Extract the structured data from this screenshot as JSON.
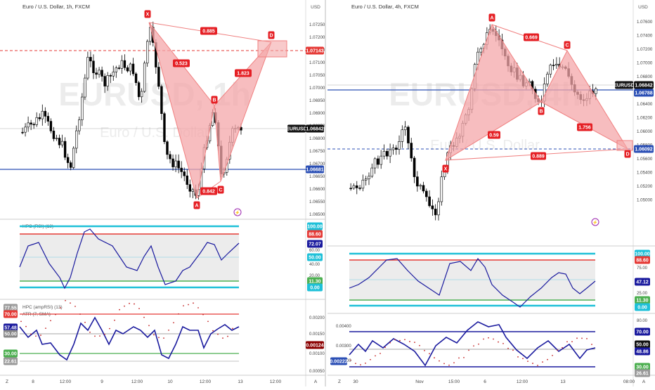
{
  "left": {
    "title": "Euro / U.S. Dollar, 1h, FXCM",
    "currency": "USD",
    "watermark_symbol": "EURUSD, 1h",
    "watermark_name": "Euro / U.S. Dollar",
    "price_axis": [
      "1.07250",
      "1.07200",
      "1.07150",
      "1.07100",
      "1.07050",
      "1.07000",
      "1.06950",
      "1.06900",
      "1.06850",
      "1.06800",
      "1.06750",
      "1.06700",
      "1.06650",
      "1.06600",
      "1.06550",
      "1.06500"
    ],
    "last_price_label": "EURUSD",
    "last_price": "1.06842",
    "red_level": "1.07143",
    "blue_level": "1.06681",
    "pattern_points": [
      "X",
      "A",
      "B",
      "C",
      "D"
    ],
    "ratios": {
      "xb": "0.523",
      "xd": "0.885",
      "bd": "1.823",
      "ac": "0.842"
    },
    "rsi_label": "HPC (RSI) (13)",
    "rsi_axis": [
      "100.00",
      "88.60",
      "72.07",
      "60.00",
      "50.00",
      "40.00",
      "20.00",
      "11.30",
      "0.00"
    ],
    "amp_label": "HPC (ampRSI) (13)",
    "atr_label": "ATR (7, SMA)",
    "amp_left_axis": [
      "77.55",
      "70.00",
      "57.48",
      "50.00",
      "30.00",
      "22.61"
    ],
    "atr_axis": [
      "0.00200",
      "0.00150",
      "0.00124",
      "0.00100",
      "0.00050"
    ],
    "time_axis": [
      "8",
      "12:00",
      "9",
      "12:00",
      "10",
      "12:00",
      "13",
      "12:00"
    ],
    "axis_mode": "A"
  },
  "right": {
    "title": "Euro / U.S. Dollar, 4h, FXCM",
    "currency": "USD",
    "watermark_symbol": "EURUSD, 4h",
    "watermark_name": "Euro / U.S. Dollar",
    "price_axis": [
      "1.07600",
      "1.07400",
      "1.07200",
      "1.07000",
      "1.06800",
      "1.06600",
      "1.06400",
      "1.06200",
      "1.06000",
      "1.05800",
      "1.05600",
      "1.05400",
      "1.05200",
      "1.05000"
    ],
    "last_price_label": "EURUSD",
    "last_price": "1.06842",
    "blue_level": "1.06788",
    "dash_level": "1.06092",
    "pattern_points": [
      "X",
      "A",
      "B",
      "C",
      "D"
    ],
    "ratios": {
      "xb": "0.59",
      "ac": "0.669",
      "bd": "1.756",
      "xd": "0.889"
    },
    "rsi_axis": [
      "100.00",
      "88.60",
      "75.00",
      "47.12",
      "25.00",
      "11.30",
      "0.00"
    ],
    "amp_axis": [
      "80.00",
      "70.00",
      "50.00",
      "48.86",
      "30.00",
      "26.61"
    ],
    "atr_axis": [
      "0.00400",
      "0.00300",
      "0.00200",
      "0.00100"
    ],
    "atr_badge": "0.00222",
    "time_axis": [
      "30",
      "Nov",
      "15:00",
      "6",
      "12:00",
      "13",
      "08:00"
    ],
    "axis_mode": "A"
  },
  "colors": {
    "up": "#000000",
    "down": "#000000",
    "pattern_fill": "#f4a7a9",
    "pattern_stroke": "#f08080",
    "label_red": "#e51f24",
    "level_blue": "#2b4fb5",
    "rsi_line": "#1a1a9e",
    "cyan": "#1ec0d8",
    "green": "#4caf50",
    "red_line": "#e53935"
  }
}
